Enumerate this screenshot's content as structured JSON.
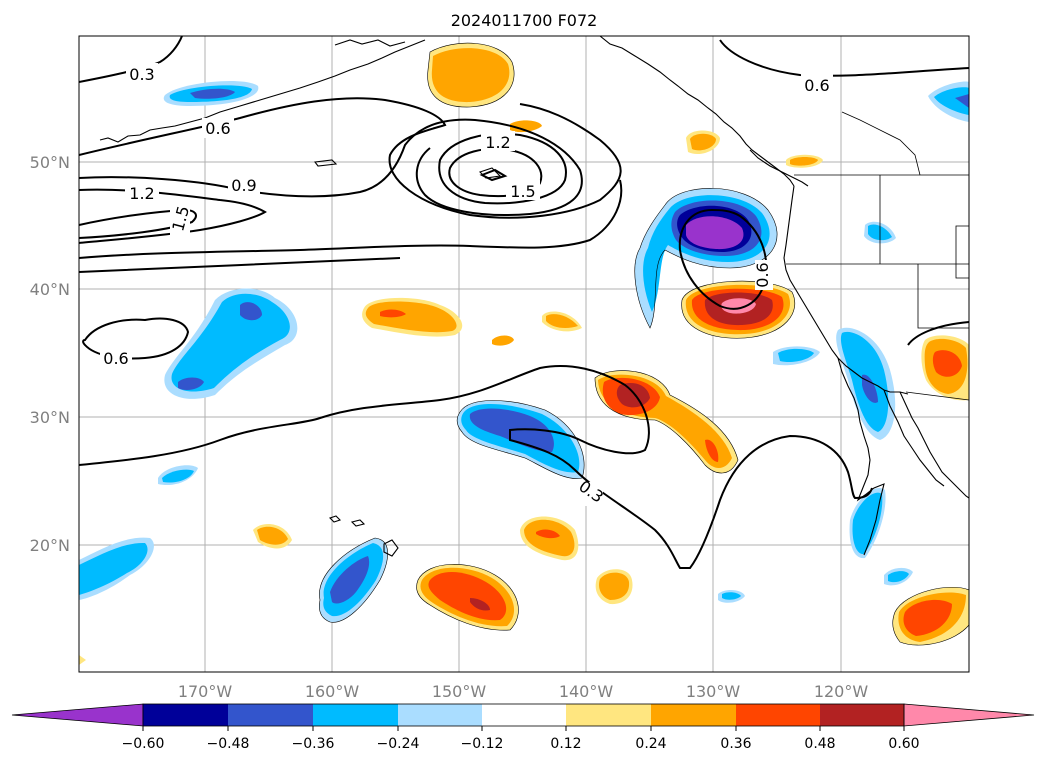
{
  "title": "2024011700 F072",
  "lon_labels": [
    "170°W",
    "160°W",
    "150°W",
    "140°W",
    "130°W",
    "120°W"
  ],
  "lat_labels": [
    "50°N",
    "40°N",
    "30°N",
    "20°N"
  ],
  "colorbar": {
    "ticks": [
      "−0.60",
      "−0.48",
      "−0.36",
      "−0.24",
      "−0.12",
      "0.12",
      "0.24",
      "0.36",
      "0.48",
      "0.60"
    ],
    "colors": [
      "#9933cc",
      "#000099",
      "#3355cc",
      "#00bbff",
      "#aaddff",
      "#ffffff",
      "#ffe680",
      "#ffa500",
      "#ff4500",
      "#b22222",
      "#ff88aa"
    ]
  },
  "contour_labels": [
    "0.3",
    "0.6",
    "0.6",
    "1.2",
    "1.5",
    "0.9",
    "1.2",
    "1.5",
    "0.6",
    "0.3",
    "0.6"
  ]
}
